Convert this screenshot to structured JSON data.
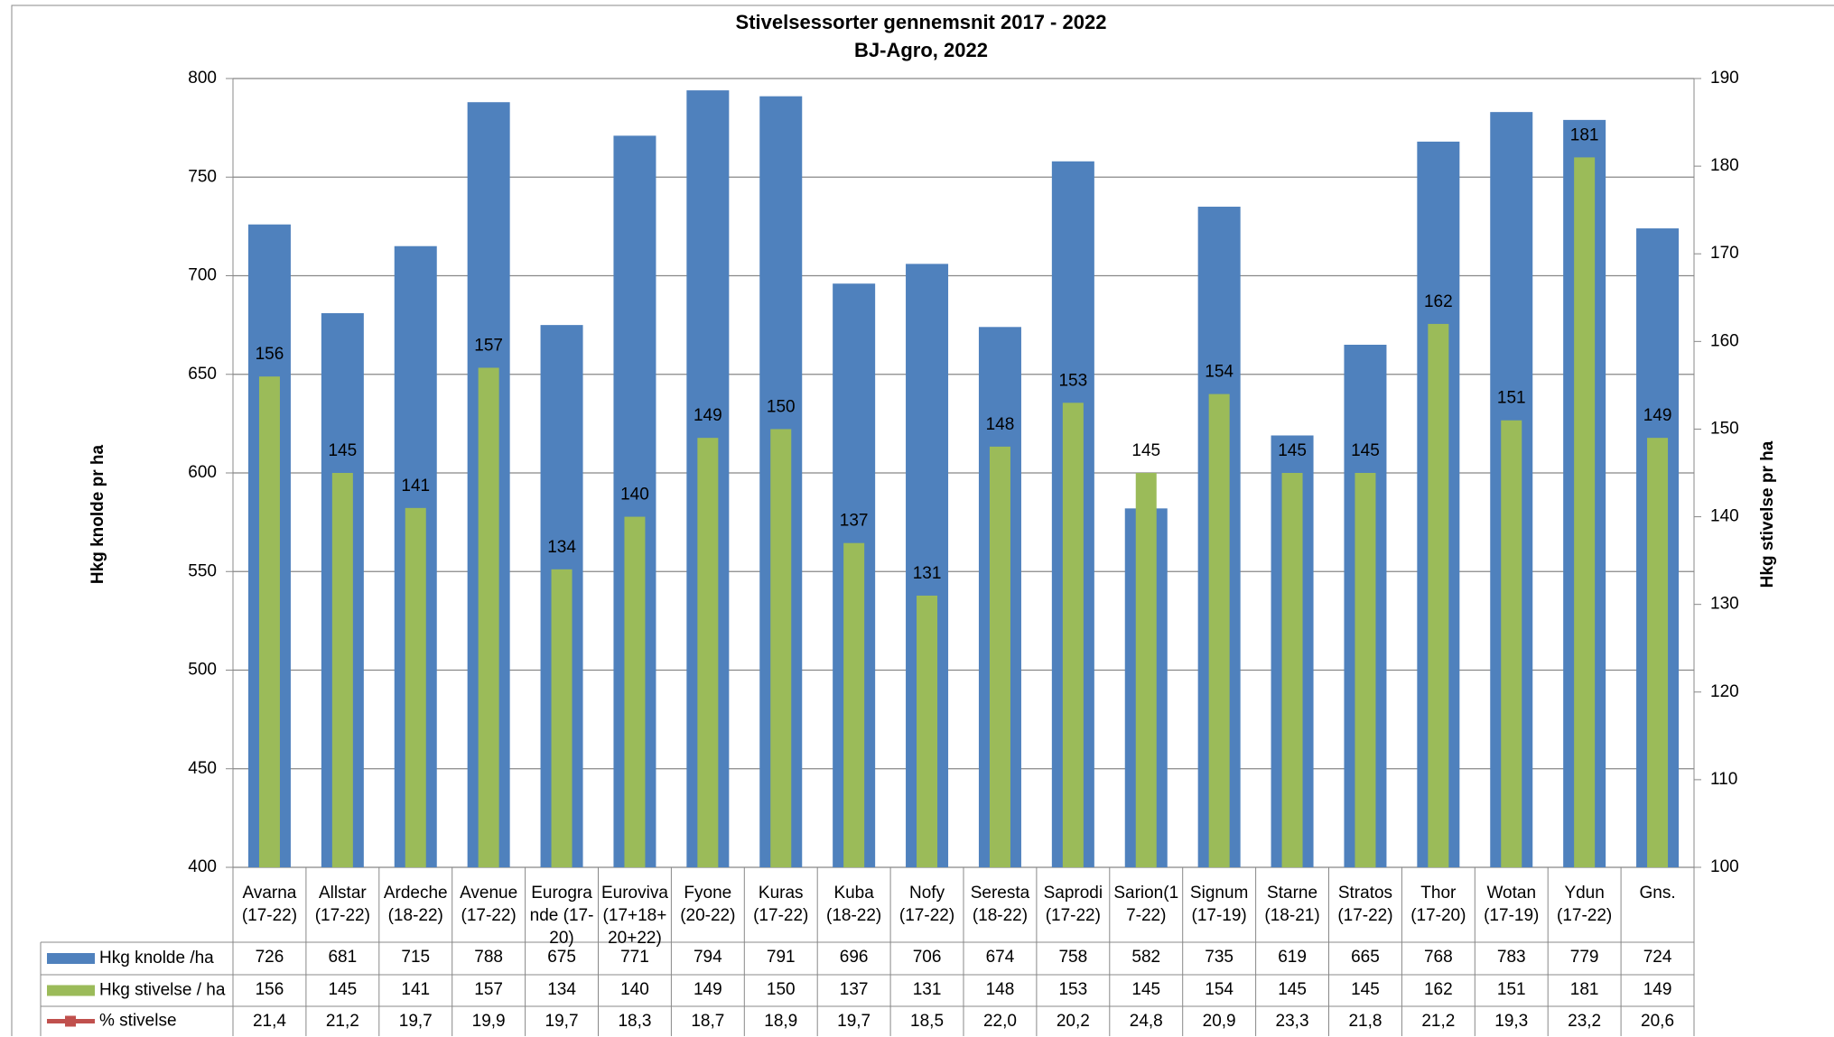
{
  "chart_data": {
    "type": "bar",
    "title": "Stivelsessorter gennemsnit 2017 - 2022",
    "subtitle": "BJ-Agro, 2022",
    "ylabel": "Hkg knolde pr ha",
    "y2label": "Hkg stivelse pr ha",
    "categories": [
      "Avarna\n(17-22)",
      "Allstar\n(17-22)",
      "Ardeche\n(18-22)",
      "Avenue\n(17-22)",
      "Eurogra\nnde (17-\n20)",
      "Euroviva\n(17+18+\n20+22)",
      "Fyone\n(20-22)",
      "Kuras\n(17-22)",
      "Kuba\n(18-22)",
      "Nofy\n(17-22)",
      "Seresta\n(18-22)",
      "Saprodi\n(17-22)",
      "Sarion(1\n7-22)",
      "Signum\n(17-19)",
      "Starne\n(18-21)",
      "Stratos\n(17-22)",
      "Thor\n(17-20)",
      "Wotan\n(17-19)",
      "Ydun\n(17-22)",
      "Gns."
    ],
    "series": [
      {
        "name": "Hkg knolde /ha",
        "color": "#4f81bd",
        "values": [
          726,
          681,
          715,
          788,
          675,
          771,
          794,
          791,
          696,
          706,
          674,
          758,
          582,
          735,
          619,
          665,
          768,
          783,
          779,
          724
        ]
      },
      {
        "name": "Hkg stivelse / ha",
        "color": "#9bbb59",
        "axis": "y2",
        "values": [
          156,
          145,
          141,
          157,
          134,
          140,
          149,
          150,
          137,
          131,
          148,
          153,
          145,
          154,
          145,
          145,
          162,
          151,
          181,
          149
        ]
      },
      {
        "name": "% stivelse",
        "color": "#c0504d",
        "values": [
          21.4,
          21.2,
          19.7,
          19.9,
          19.7,
          18.3,
          18.7,
          18.9,
          19.7,
          18.5,
          22.0,
          20.2,
          24.8,
          20.9,
          23.3,
          21.8,
          21.2,
          19.3,
          23.2,
          20.6
        ],
        "value_labels": [
          "21,4",
          "21,2",
          "19,7",
          "19,9",
          "19,7",
          "18,3",
          "18,7",
          "18,9",
          "19,7",
          "18,5",
          "22,0",
          "20,2",
          "24,8",
          "20,9",
          "23,3",
          "21,8",
          "21,2",
          "19,3",
          "23,2",
          "20,6"
        ]
      }
    ],
    "ylim": [
      400,
      800
    ],
    "yticks": [
      400,
      450,
      500,
      550,
      600,
      650,
      700,
      750,
      800
    ],
    "y2lim": [
      100,
      190
    ],
    "y2ticks": [
      100,
      110,
      120,
      130,
      140,
      150,
      160,
      170,
      180,
      190
    ],
    "grid": true
  }
}
